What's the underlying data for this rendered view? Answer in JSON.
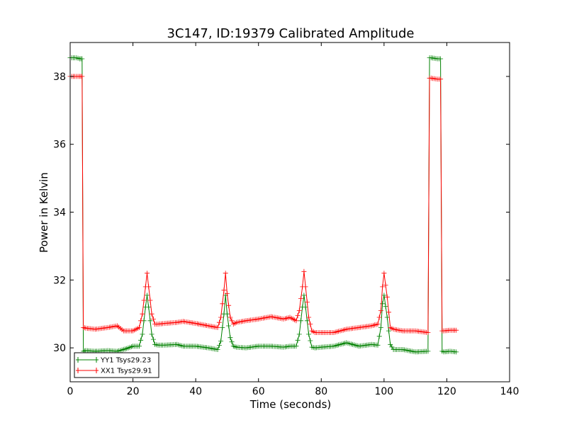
{
  "chart_data": {
    "type": "line",
    "title": "3C147, ID:19379 Calibrated Amplitude",
    "xlabel": "Time (seconds)",
    "ylabel": "Power in Kelvin",
    "xlim": [
      0,
      140
    ],
    "ylim": [
      29,
      39
    ],
    "xticks": [
      0,
      20,
      40,
      60,
      80,
      100,
      120,
      140
    ],
    "yticks": [
      30,
      32,
      34,
      36,
      38
    ],
    "grid": false,
    "legend_position": "bottom-left",
    "marker": "+",
    "series": [
      {
        "name": "YY1 Tsys29.23",
        "color": "#008000",
        "x": [
          0,
          1,
          2,
          3,
          3.8,
          4.2,
          5,
          8,
          12,
          15,
          18,
          20,
          22,
          23,
          24,
          24.5,
          25,
          26,
          27,
          28,
          30,
          34,
          36,
          40,
          44,
          47,
          48,
          49,
          49.5,
          50,
          51,
          52,
          53,
          56,
          60,
          64,
          68,
          70,
          72,
          73,
          74,
          74.5,
          75,
          76,
          77,
          78,
          80,
          84,
          88,
          92,
          96,
          98,
          99,
          99.5,
          100,
          101,
          102,
          103,
          106,
          110,
          114,
          114.5,
          115,
          117,
          118,
          118.5,
          119,
          121,
          123
        ],
        "y": [
          38.55,
          38.55,
          38.55,
          38.52,
          38.52,
          29.9,
          29.92,
          29.9,
          29.92,
          29.9,
          29.98,
          30.05,
          30.05,
          30.4,
          31.2,
          31.55,
          31.2,
          30.4,
          30.1,
          30.08,
          30.08,
          30.1,
          30.05,
          30.05,
          30.0,
          29.95,
          30.2,
          31.0,
          31.55,
          31.0,
          30.3,
          30.05,
          30.02,
          30.0,
          30.05,
          30.05,
          30.02,
          30.05,
          30.05,
          30.4,
          31.2,
          31.55,
          31.2,
          30.4,
          30.02,
          30.0,
          30.02,
          30.05,
          30.15,
          30.05,
          30.1,
          30.08,
          30.6,
          31.3,
          31.55,
          30.9,
          30.1,
          29.95,
          29.95,
          29.88,
          29.9,
          38.55,
          38.55,
          38.52,
          38.52,
          29.9,
          29.88,
          29.9,
          29.88
        ]
      },
      {
        "name": "XX1 Tsys29.91",
        "color": "#ff0000",
        "x": [
          0,
          1,
          2,
          3,
          3.8,
          4.2,
          5,
          8,
          12,
          15,
          17,
          20,
          22,
          23,
          24,
          24.5,
          25,
          26,
          27,
          28,
          30,
          34,
          36,
          40,
          44,
          47,
          48,
          49,
          49.5,
          50,
          51,
          52,
          53,
          56,
          60,
          64,
          68,
          70,
          72,
          73,
          74,
          74.5,
          75,
          76,
          77,
          78,
          80,
          84,
          88,
          92,
          96,
          98,
          99,
          99.5,
          100,
          101,
          102,
          103,
          106,
          110,
          114,
          114.5,
          115,
          117,
          118,
          118.5,
          119,
          121,
          123
        ],
        "y": [
          38.0,
          38.0,
          38.0,
          38.0,
          38.0,
          30.6,
          30.58,
          30.55,
          30.6,
          30.65,
          30.5,
          30.5,
          30.6,
          31.0,
          31.8,
          32.2,
          31.8,
          31.0,
          30.7,
          30.7,
          30.72,
          30.75,
          30.78,
          30.72,
          30.65,
          30.6,
          30.9,
          31.7,
          32.2,
          31.6,
          30.9,
          30.7,
          30.75,
          30.8,
          30.85,
          30.92,
          30.85,
          30.9,
          30.8,
          31.1,
          31.8,
          32.25,
          31.8,
          30.9,
          30.5,
          30.45,
          30.45,
          30.45,
          30.55,
          30.6,
          30.65,
          30.7,
          31.1,
          31.8,
          32.2,
          31.5,
          30.6,
          30.55,
          30.5,
          30.5,
          30.45,
          37.95,
          37.95,
          37.92,
          37.92,
          30.5,
          30.5,
          30.52,
          30.52
        ]
      }
    ]
  }
}
